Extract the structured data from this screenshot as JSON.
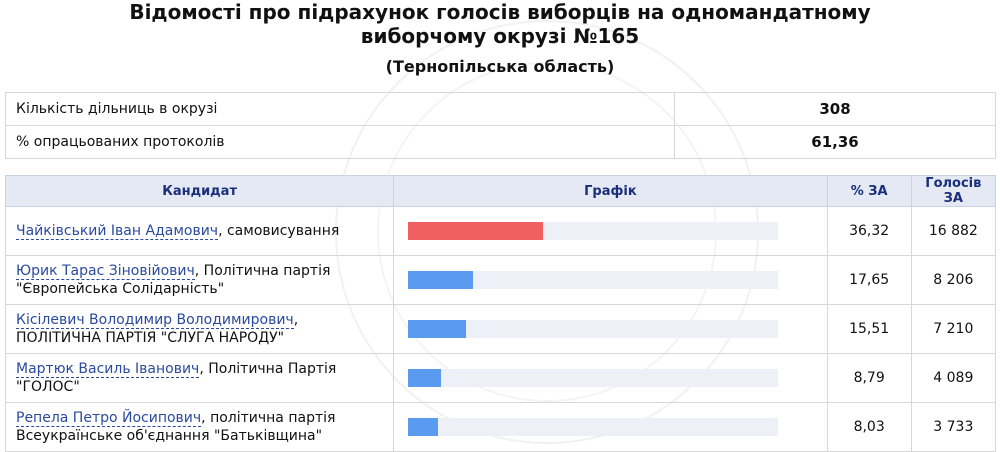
{
  "header": {
    "title_line1": "Відомості про підрахунок голосів виборців на одномандатному",
    "title_line2": "виборчому окрузі №165",
    "region": "(Тернопільська область)"
  },
  "stats": [
    {
      "label": "Кількість дільниць в окрузі",
      "value": "308"
    },
    {
      "label": "% опрацьованих протоколів",
      "value": "61,36"
    }
  ],
  "table": {
    "columns": [
      "Кандидат",
      "Графік",
      "% ЗА",
      "Голосів ЗА"
    ],
    "rows": [
      {
        "name": "Чайківський Іван Адамович",
        "party": ", самовисування",
        "pct": "36,32",
        "votes": "16 882",
        "share": 0.3632
      },
      {
        "name": "Юрик Тарас Зіновійович",
        "party": ", Політична партія \"Європейська Солідарність\"",
        "pct": "17,65",
        "votes": "8 206",
        "share": 0.1765
      },
      {
        "name": "Кісілевич Володимир Володимирович",
        "party": ", ПОЛІТИЧНА ПАРТІЯ \"СЛУГА НАРОДУ\"",
        "pct": "15,51",
        "votes": "7 210",
        "share": 0.1551
      },
      {
        "name": "Мартюк Василь Іванович",
        "party": ", Політична Партія \"ГОЛОС\"",
        "pct": "8,79",
        "votes": "4 089",
        "share": 0.0879
      },
      {
        "name": "Репела Петро Йосипович",
        "party": ", політична партія Всеукраїнське об'єднання \"Батьківщина\"",
        "pct": "8,03",
        "votes": "3 733",
        "share": 0.0803
      }
    ]
  },
  "colors": {
    "leader_bar": "#f06060",
    "bar": "#5b9bef",
    "track": "#eef0f8",
    "header_bg": "#e4e9f4",
    "link": "#2a4a9e"
  }
}
